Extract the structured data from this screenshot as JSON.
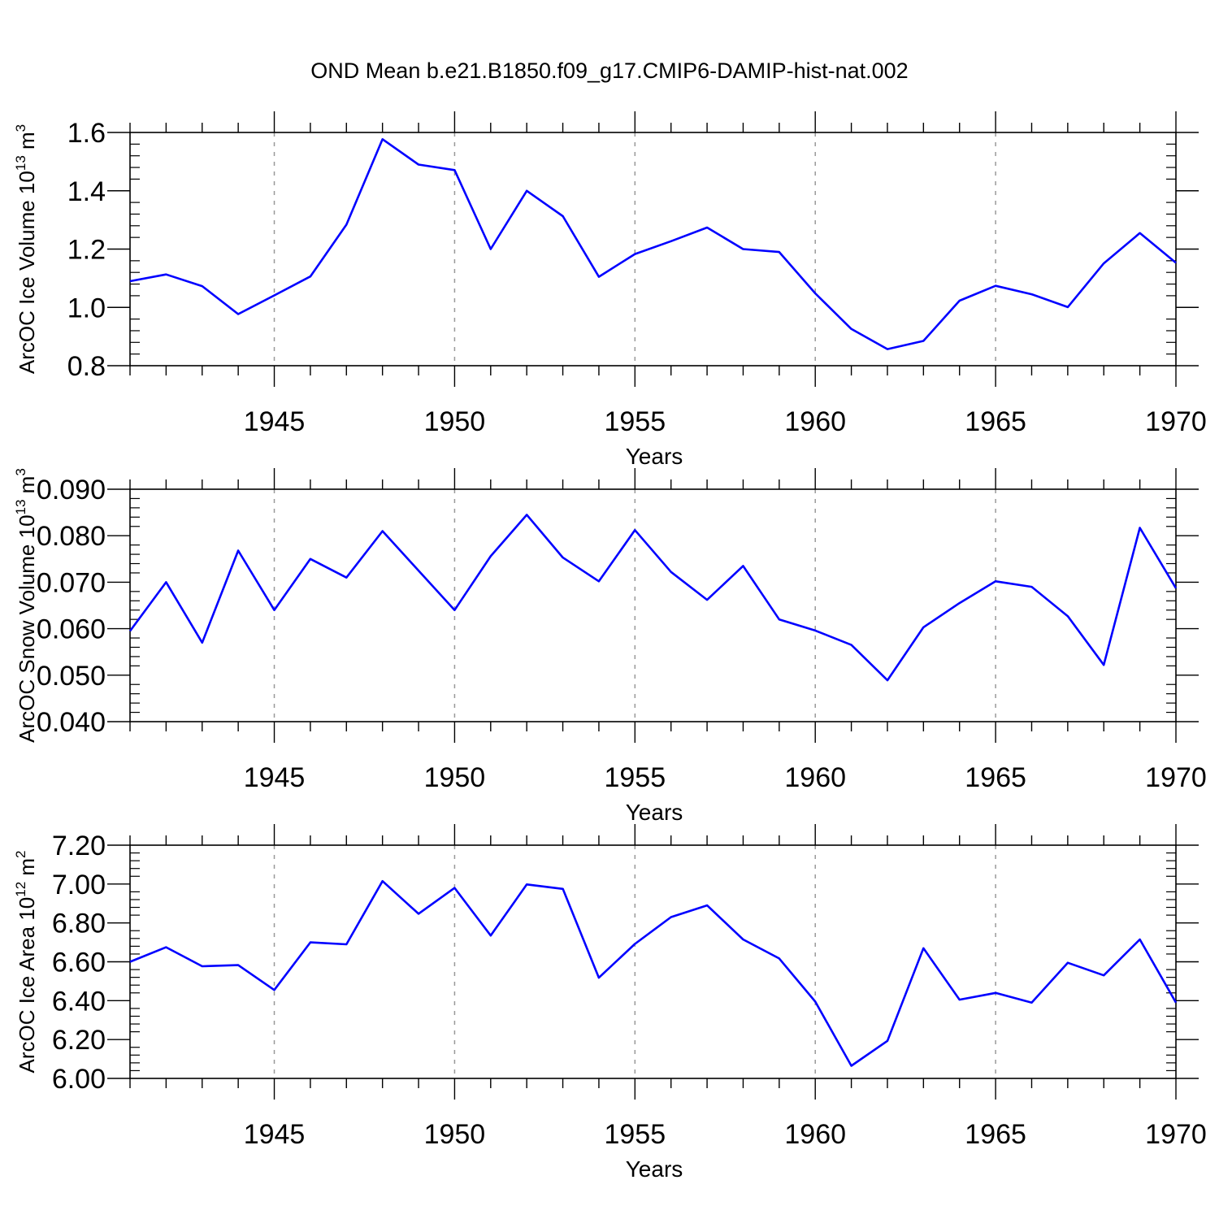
{
  "chart_data": [
    {
      "type": "line",
      "title": "OND Mean b.e21.B1850.f09_g17.CMIP6-DAMIP-hist-nat.002",
      "ylabel_prefix": "ArcOC Ice Volume 10",
      "ylabel_exponent": "13",
      "ylabel_unit": "m",
      "ylabel_unit_exponent": "3",
      "xlabel": "Years",
      "xlim": [
        1941,
        1970
      ],
      "ylim": [
        0.8,
        1.6
      ],
      "xticks": [
        1945,
        1950,
        1955,
        1960,
        1965,
        1970
      ],
      "xtick_labels": [
        "1945",
        "1950",
        "1955",
        "1960",
        "1965",
        "1970"
      ],
      "yticks": [
        0.8,
        1.0,
        1.2,
        1.4,
        1.6
      ],
      "ytick_labels": [
        "0.8",
        "1.0",
        "1.2",
        "1.4",
        "1.6"
      ],
      "line_color": "#0000ff",
      "grid_color": "#999999",
      "series": [
        {
          "name": "ArcOC Ice Volume",
          "x": [
            1941,
            1942,
            1943,
            1944,
            1945,
            1946,
            1947,
            1948,
            1949,
            1950,
            1951,
            1952,
            1953,
            1954,
            1955,
            1956,
            1957,
            1958,
            1959,
            1960,
            1961,
            1962,
            1963,
            1964,
            1965,
            1966,
            1967,
            1968,
            1969,
            1970
          ],
          "values": [
            1.09,
            1.113,
            1.073,
            0.977,
            1.041,
            1.106,
            1.284,
            1.577,
            1.49,
            1.471,
            1.2,
            1.4,
            1.313,
            1.105,
            1.183,
            1.227,
            1.274,
            1.2,
            1.19,
            1.048,
            0.926,
            0.857,
            0.885,
            1.023,
            1.074,
            1.045,
            1.001,
            1.151,
            1.255,
            1.153
          ]
        }
      ]
    },
    {
      "type": "line",
      "title": "",
      "ylabel_prefix": "ArcOC Snow Volume 10",
      "ylabel_exponent": "13",
      "ylabel_unit": "m",
      "ylabel_unit_exponent": "3",
      "xlabel": "Years",
      "xlim": [
        1941,
        1970
      ],
      "ylim": [
        0.04,
        0.09
      ],
      "xticks": [
        1945,
        1950,
        1955,
        1960,
        1965,
        1970
      ],
      "xtick_labels": [
        "1945",
        "1950",
        "1955",
        "1960",
        "1965",
        "1970"
      ],
      "yticks": [
        0.04,
        0.05,
        0.06,
        0.07,
        0.08,
        0.09
      ],
      "ytick_labels": [
        "0.040",
        "0.050",
        "0.060",
        "0.070",
        "0.080",
        "0.090"
      ],
      "line_color": "#0000ff",
      "grid_color": "#999999",
      "series": [
        {
          "name": "ArcOC Snow Volume",
          "x": [
            1941,
            1942,
            1943,
            1944,
            1945,
            1946,
            1947,
            1948,
            1949,
            1950,
            1951,
            1952,
            1953,
            1954,
            1955,
            1956,
            1957,
            1958,
            1959,
            1960,
            1961,
            1962,
            1963,
            1964,
            1965,
            1966,
            1967,
            1968,
            1969,
            1970
          ],
          "values": [
            0.0595,
            0.07,
            0.057,
            0.0768,
            0.064,
            0.075,
            0.071,
            0.081,
            0.0725,
            0.064,
            0.0756,
            0.0845,
            0.0753,
            0.0702,
            0.0812,
            0.0722,
            0.0662,
            0.0735,
            0.062,
            0.0596,
            0.0565,
            0.0489,
            0.0603,
            0.0655,
            0.0702,
            0.069,
            0.0627,
            0.0522,
            0.0817,
            0.0687
          ]
        }
      ]
    },
    {
      "type": "line",
      "title": "",
      "ylabel_prefix": "ArcOC Ice Area 10",
      "ylabel_exponent": "12",
      "ylabel_unit": "m",
      "ylabel_unit_exponent": "2",
      "xlabel": "Years",
      "xlim": [
        1941,
        1970
      ],
      "ylim": [
        6.0,
        7.2
      ],
      "xticks": [
        1945,
        1950,
        1955,
        1960,
        1965,
        1970
      ],
      "xtick_labels": [
        "1945",
        "1950",
        "1955",
        "1960",
        "1965",
        "1970"
      ],
      "yticks": [
        6.0,
        6.2,
        6.4,
        6.6,
        6.8,
        7.0,
        7.2
      ],
      "ytick_labels": [
        "6.00",
        "6.20",
        "6.40",
        "6.60",
        "6.80",
        "7.00",
        "7.20"
      ],
      "line_color": "#0000ff",
      "grid_color": "#999999",
      "series": [
        {
          "name": "ArcOC Ice Area",
          "x": [
            1941,
            1942,
            1943,
            1944,
            1945,
            1946,
            1947,
            1948,
            1949,
            1950,
            1951,
            1952,
            1953,
            1954,
            1955,
            1956,
            1957,
            1958,
            1959,
            1960,
            1961,
            1962,
            1963,
            1964,
            1965,
            1966,
            1967,
            1968,
            1969,
            1970
          ],
          "values": [
            6.6,
            6.675,
            6.577,
            6.583,
            6.455,
            6.7,
            6.69,
            7.015,
            6.847,
            6.98,
            6.735,
            6.998,
            6.975,
            6.518,
            6.692,
            6.83,
            6.89,
            6.715,
            6.617,
            6.395,
            6.065,
            6.193,
            6.67,
            6.405,
            6.44,
            6.39,
            6.595,
            6.53,
            6.715,
            6.39
          ]
        }
      ]
    }
  ]
}
